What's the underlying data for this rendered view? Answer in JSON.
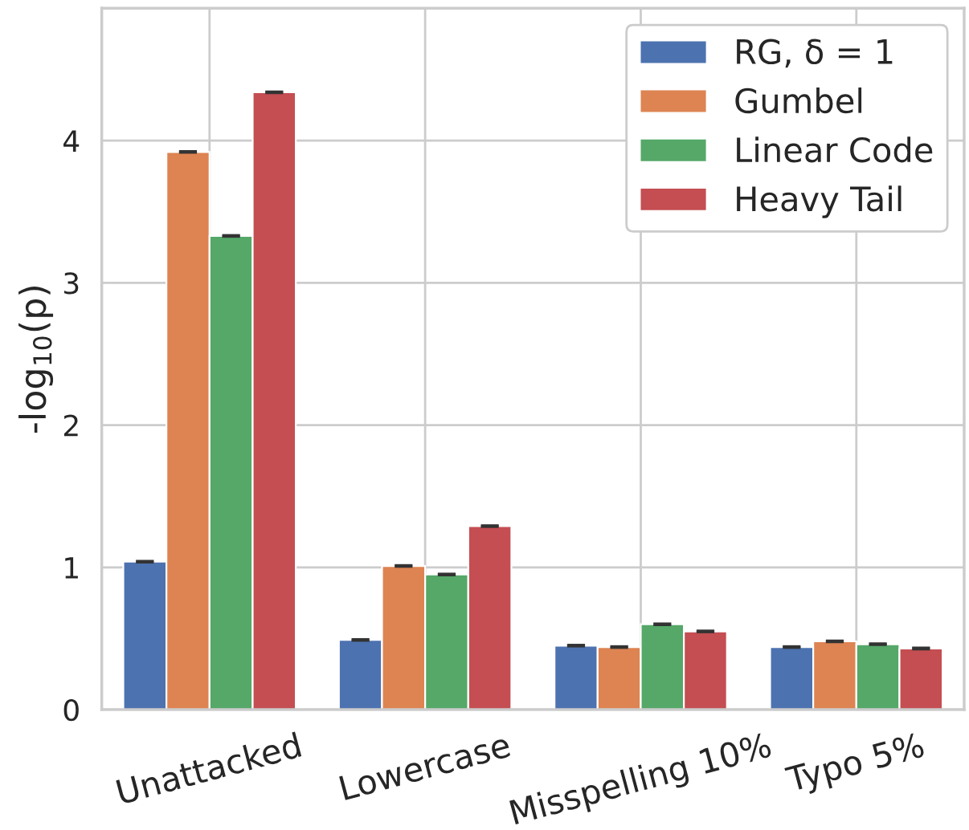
{
  "chart_data": {
    "type": "bar",
    "ylabel": "-log$_{10}$(p)",
    "categories": [
      "Unattacked",
      "Lowercase",
      "Misspelling 10%",
      "Typo 5%"
    ],
    "series": [
      {
        "name": "RG, δ = 1",
        "color": "#4c72b0",
        "values": [
          1.04,
          0.49,
          0.45,
          0.44
        ],
        "errors": [
          0.005,
          0.005,
          0.005,
          0.005
        ]
      },
      {
        "name": "Gumbel",
        "color": "#dd8452",
        "values": [
          3.92,
          1.01,
          0.44,
          0.48
        ],
        "errors": [
          0.005,
          0.005,
          0.005,
          0.005
        ]
      },
      {
        "name": "Linear Code",
        "color": "#55a868",
        "values": [
          3.33,
          0.95,
          0.6,
          0.46
        ],
        "errors": [
          0.005,
          0.005,
          0.005,
          0.005
        ]
      },
      {
        "name": "Heavy Tail",
        "color": "#c44e52",
        "values": [
          4.34,
          1.29,
          0.55,
          0.43
        ],
        "errors": [
          0.005,
          0.005,
          0.005,
          0.005
        ]
      }
    ],
    "ylim": [
      0,
      4.93
    ],
    "yticks": [
      0,
      1,
      2,
      3,
      4
    ],
    "grid": true,
    "legend": "top right"
  }
}
